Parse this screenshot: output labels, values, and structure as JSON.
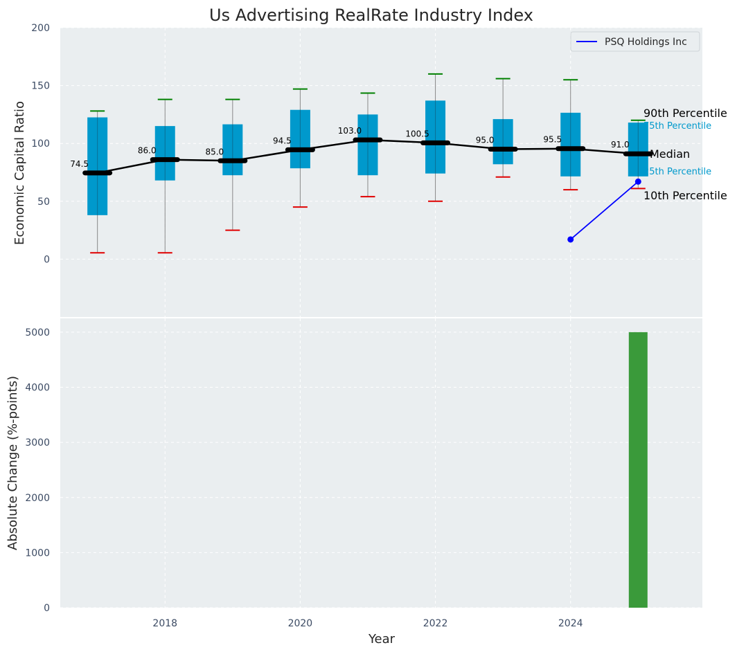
{
  "chart_data": [
    {
      "type": "box",
      "title": "Us Advertising RealRate Industry Index",
      "xlabel": "",
      "ylabel": "Economic Capital Ratio",
      "ylim": [
        -50,
        200
      ],
      "yticks": [
        0,
        50,
        100,
        150,
        200
      ],
      "grid": true,
      "legend": {
        "placement": "top-right",
        "entries": [
          {
            "name": "PSQ Holdings Inc",
            "color": "#0000ff"
          }
        ]
      },
      "boxes": [
        {
          "x": 2017,
          "p10": 5.5,
          "q1": 38.0,
          "median": 74.5,
          "q3": 122.5,
          "p90": 128.0,
          "median_label": "74.5"
        },
        {
          "x": 2018,
          "p10": 5.5,
          "q1": 68.0,
          "median": 86.0,
          "q3": 115.0,
          "p90": 138.0,
          "median_label": "86.0"
        },
        {
          "x": 2019,
          "p10": 25.0,
          "q1": 72.5,
          "median": 85.0,
          "q3": 116.5,
          "p90": 138.0,
          "median_label": "85.0"
        },
        {
          "x": 2020,
          "p10": 45.0,
          "q1": 78.5,
          "median": 94.5,
          "q3": 129.0,
          "p90": 147.0,
          "median_label": "94.5"
        },
        {
          "x": 2021,
          "p10": 54.0,
          "q1": 72.5,
          "median": 103.0,
          "q3": 125.0,
          "p90": 143.5,
          "median_label": "103.0"
        },
        {
          "x": 2022,
          "p10": 50.0,
          "q1": 74.0,
          "median": 100.5,
          "q3": 137.0,
          "p90": 160.0,
          "median_label": "100.5"
        },
        {
          "x": 2023,
          "p10": 71.0,
          "q1": 82.0,
          "median": 95.0,
          "q3": 121.0,
          "p90": 156.0,
          "median_label": "95.0"
        },
        {
          "x": 2024,
          "p10": 60.0,
          "q1": 71.5,
          "median": 95.5,
          "q3": 126.5,
          "p90": 155.0,
          "median_label": "95.5"
        },
        {
          "x": 2025,
          "p10": 61.0,
          "q1": 71.5,
          "median": 91.0,
          "q3": 118.0,
          "p90": 120.0,
          "median_label": "91.0"
        }
      ],
      "series": [
        {
          "name": "PSQ Holdings Inc",
          "color": "#0000ff",
          "x": [
            2024,
            2025
          ],
          "values": [
            17.0,
            67.0
          ]
        }
      ],
      "percentile_labels": {
        "p90": "90th Percentile",
        "q3": "75th Percentile",
        "median": "Median",
        "q1": "25th Percentile",
        "p10": "10th Percentile"
      },
      "colors": {
        "box": "#0099cc",
        "median": "#000000",
        "p90_cap": "#008000",
        "p10_cap": "#e00000",
        "whisker": "#888888",
        "background": "#eaeef0"
      }
    },
    {
      "type": "bar",
      "xlabel": "Year",
      "ylabel": "Absolute Change (%-points)",
      "ylim": [
        0,
        5250
      ],
      "yticks": [
        0,
        1000,
        2000,
        3000,
        4000,
        5000
      ],
      "xticks": [
        2018,
        2020,
        2022,
        2024
      ],
      "xlim": [
        2016.45,
        2025.95
      ],
      "grid": true,
      "bars": [
        {
          "x": 2025,
          "value": 5000
        }
      ],
      "colors": {
        "bar": "#3a9a3a"
      }
    }
  ]
}
